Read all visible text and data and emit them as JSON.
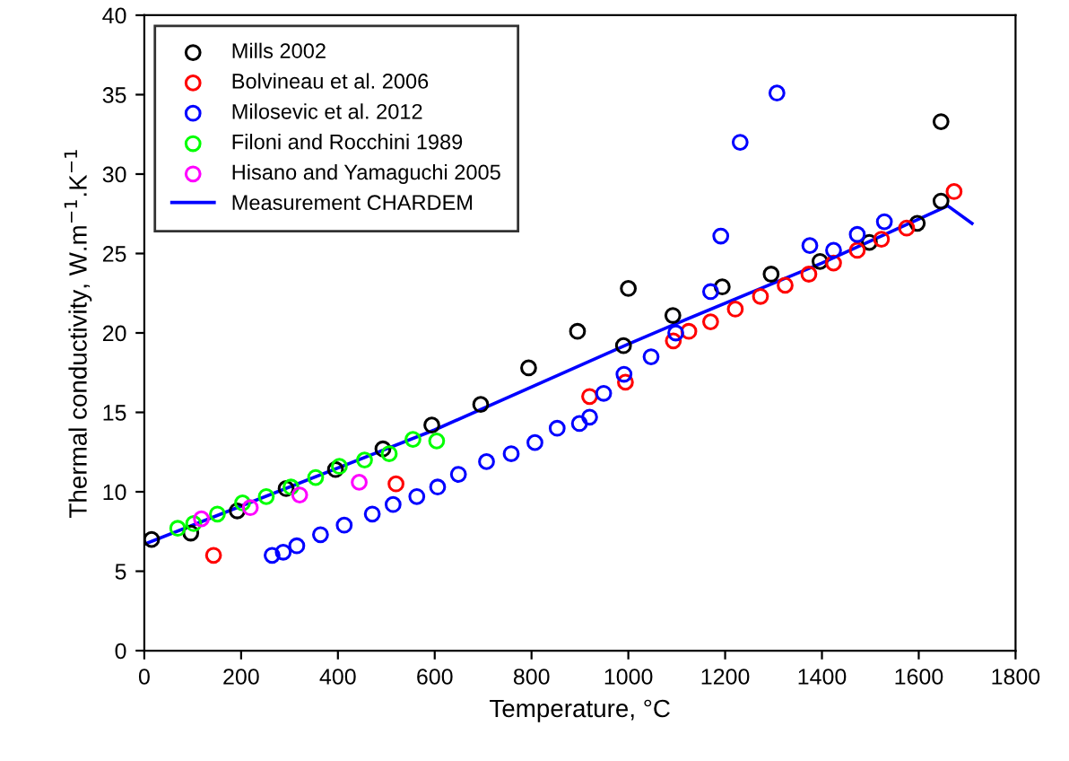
{
  "chart_data": {
    "type": "scatter",
    "xlabel": "Temperature, °C",
    "ylabel": "Thermal conductivity, W.m$^{−1}$.K$^{−1}$",
    "xlim": [
      0,
      1800
    ],
    "xticks": [
      0,
      200,
      400,
      600,
      800,
      1000,
      1200,
      1400,
      1600,
      1800
    ],
    "ylim": [
      0,
      40
    ],
    "yticks": [
      0,
      5,
      10,
      15,
      20,
      25,
      30,
      35,
      40
    ],
    "grid": false,
    "legend": "top left",
    "marker": "circle",
    "series": [
      {
        "name": "Mills 2002",
        "color": "#000000",
        "x": [
          15,
          96,
          192,
          293,
          395,
          493,
          594,
          695,
          794,
          895,
          990,
          1000,
          1092,
          1194,
          1295,
          1396,
          1498,
          1597,
          1646,
          1646
        ],
        "values": [
          7.0,
          7.4,
          8.8,
          10.2,
          11.4,
          12.7,
          14.2,
          15.5,
          17.8,
          20.1,
          19.2,
          22.8,
          21.1,
          22.9,
          23.7,
          24.5,
          25.7,
          26.9,
          28.3,
          33.3
        ]
      },
      {
        "name": "Bolvineau et al. 2006",
        "color": "#ff0000",
        "x": [
          143,
          520,
          920,
          994,
          1093,
          1125,
          1170,
          1221,
          1273,
          1324,
          1373,
          1424,
          1473,
          1523,
          1575,
          1673
        ],
        "values": [
          6.0,
          10.5,
          16.0,
          16.9,
          19.5,
          20.1,
          20.7,
          21.5,
          22.3,
          23.0,
          23.7,
          24.4,
          25.2,
          25.9,
          26.6,
          28.9
        ]
      },
      {
        "name": "Milosevic et al. 2012",
        "color": "#0000ff",
        "x": [
          264,
          287,
          315,
          364,
          413,
          471,
          514,
          563,
          606,
          649,
          707,
          758,
          807,
          853,
          899,
          920,
          949,
          991,
          1047,
          1098,
          1170,
          1191,
          1231,
          1307,
          1375,
          1424,
          1473,
          1529
        ],
        "values": [
          6.0,
          6.2,
          6.6,
          7.3,
          7.9,
          8.6,
          9.2,
          9.7,
          10.3,
          11.1,
          11.9,
          12.4,
          13.1,
          14.0,
          14.3,
          14.7,
          16.2,
          17.4,
          18.5,
          20.0,
          22.6,
          26.1,
          32.0,
          35.1,
          25.5,
          25.2,
          26.2,
          27.0
        ]
      },
      {
        "name": "Filoni and Rocchini 1989",
        "color": "#00ff00",
        "x": [
          69,
          102,
          151,
          203,
          252,
          303,
          354,
          403,
          455,
          506,
          555,
          604
        ],
        "values": [
          7.7,
          8.0,
          8.6,
          9.3,
          9.7,
          10.3,
          10.9,
          11.6,
          12.0,
          12.4,
          13.3,
          13.2
        ]
      },
      {
        "name": "Hisano and Yamaguchi 2005",
        "color": "#ff00ff",
        "x": [
          118,
          219,
          321,
          444
        ],
        "values": [
          8.3,
          9.0,
          9.8,
          10.6
        ]
      },
      {
        "name": "Measurement CHARDEM",
        "color": "#0000ff",
        "type": "line",
        "marker": "none",
        "x": [
          0,
          600,
          1000,
          1100,
          1400,
          1660,
          1710
        ],
        "values": [
          6.7,
          13.9,
          19.3,
          20.6,
          24.4,
          28.0,
          26.9
        ]
      }
    ]
  }
}
